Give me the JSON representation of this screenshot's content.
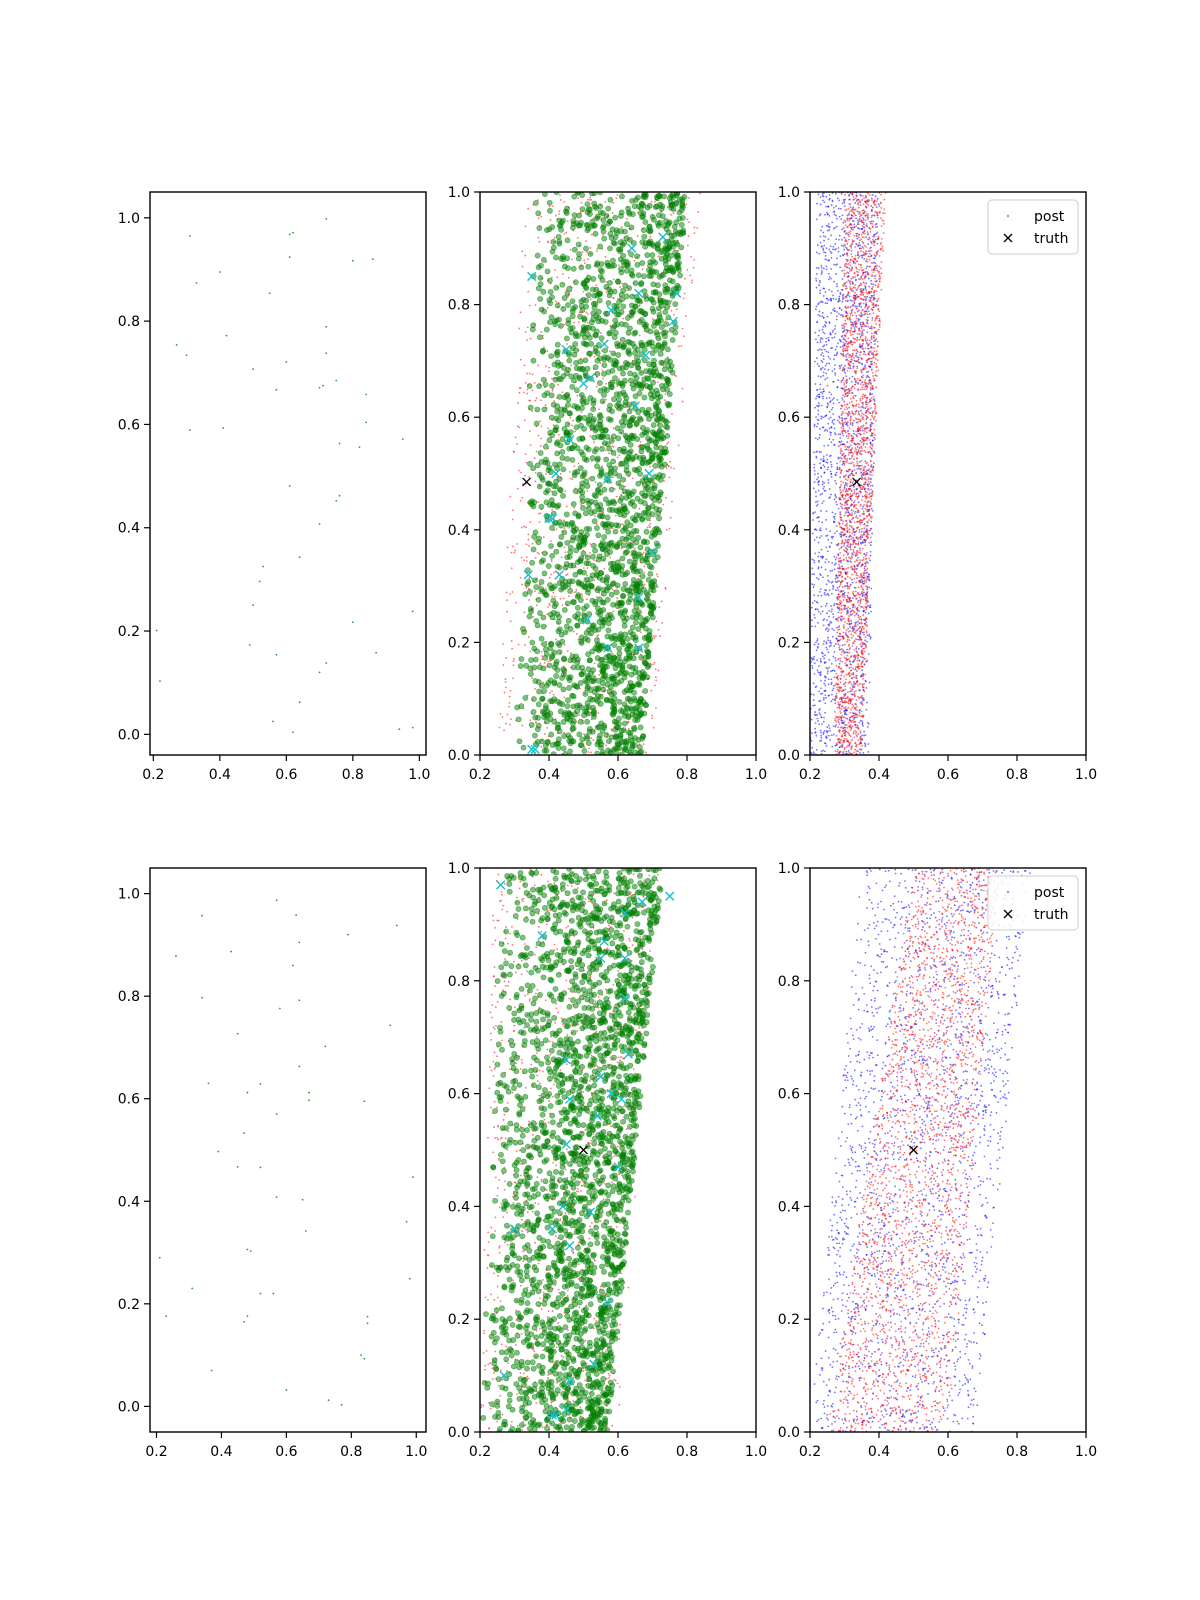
{
  "figure": {
    "background": "#ffffff"
  },
  "colors": {
    "green_dot": "#2ca02c",
    "scatter_green": "#008000",
    "cyan_x": "#17becf",
    "red_dot": "#ff0000",
    "blue_dot": "#0000ff",
    "truth": "#000000",
    "legend_post": "#6fa8dc"
  },
  "chart_data": [
    {
      "type": "scatter",
      "panel": "top-left",
      "xlim": [
        0.19,
        1.02
      ],
      "ylim": [
        -0.04,
        1.05
      ],
      "xticks": [
        "0.2",
        "0.4",
        "0.6",
        "0.8",
        "1.0"
      ],
      "yticks": [
        "0.0",
        "0.2",
        "0.4",
        "0.6",
        "0.8",
        "1.0"
      ],
      "grid": false,
      "series": [
        {
          "marker": "dot",
          "color": "#2ca02c",
          "points": [
            [
              0.31,
              0.965
            ],
            [
              0.61,
              0.968
            ],
            [
              0.62,
              0.971
            ],
            [
              0.72,
              0.998
            ],
            [
              0.33,
              0.874
            ],
            [
              0.4,
              0.895
            ],
            [
              0.61,
              0.924
            ],
            [
              0.8,
              0.917
            ],
            [
              0.86,
              0.92
            ],
            [
              0.55,
              0.854
            ],
            [
              0.42,
              0.772
            ],
            [
              0.72,
              0.789
            ],
            [
              0.27,
              0.754
            ],
            [
              0.3,
              0.734
            ],
            [
              0.72,
              0.738
            ],
            [
              0.6,
              0.721
            ],
            [
              0.5,
              0.707
            ],
            [
              0.75,
              0.685
            ],
            [
              0.7,
              0.671
            ],
            [
              0.71,
              0.675
            ],
            [
              0.57,
              0.667
            ],
            [
              0.84,
              0.658
            ],
            [
              0.84,
              0.604
            ],
            [
              0.31,
              0.589
            ],
            [
              0.41,
              0.593
            ],
            [
              0.95,
              0.571
            ],
            [
              0.76,
              0.563
            ],
            [
              0.82,
              0.556
            ],
            [
              0.61,
              0.481
            ],
            [
              0.76,
              0.462
            ],
            [
              0.75,
              0.452
            ],
            [
              0.7,
              0.407
            ],
            [
              0.64,
              0.343
            ],
            [
              0.53,
              0.325
            ],
            [
              0.52,
              0.296
            ],
            [
              0.5,
              0.25
            ],
            [
              0.21,
              0.201
            ],
            [
              0.8,
              0.217
            ],
            [
              0.98,
              0.238
            ],
            [
              0.49,
              0.173
            ],
            [
              0.57,
              0.154
            ],
            [
              0.87,
              0.158
            ],
            [
              0.72,
              0.138
            ],
            [
              0.7,
              0.12
            ],
            [
              0.22,
              0.103
            ],
            [
              0.64,
              0.062
            ],
            [
              0.56,
              0.025
            ],
            [
              0.62,
              0.004
            ],
            [
              0.94,
              0.01
            ],
            [
              0.98,
              0.013
            ]
          ]
        }
      ]
    },
    {
      "type": "scatter",
      "panel": "top-middle",
      "xlim": [
        0.2,
        1.0
      ],
      "ylim": [
        0.0,
        1.0
      ],
      "xticks": [
        "0.2",
        "0.4",
        "0.6",
        "0.8",
        "1.0"
      ],
      "yticks": [
        "0.0",
        "0.2",
        "0.4",
        "0.6",
        "0.8",
        "1.0"
      ],
      "grid": false,
      "series": [
        {
          "marker": "dot",
          "color": "#ff0000",
          "count": 1100,
          "x_left": [
            0.25,
            0.33
          ],
          "x_right": [
            0.7,
            0.84
          ]
        },
        {
          "marker": "circle",
          "color": "#008000",
          "count": 2200,
          "x_left": [
            0.3,
            0.36
          ],
          "x_right": [
            0.67,
            0.8
          ]
        },
        {
          "marker": "x",
          "color": "#17becf",
          "points": [
            [
              0.35,
              0.85
            ],
            [
              0.45,
              0.72
            ],
            [
              0.58,
              0.79
            ],
            [
              0.64,
              0.9
            ],
            [
              0.66,
              0.82
            ],
            [
              0.77,
              0.82
            ],
            [
              0.73,
              0.92
            ],
            [
              0.76,
              0.77
            ],
            [
              0.56,
              0.73
            ],
            [
              0.68,
              0.71
            ],
            [
              0.46,
              0.56
            ],
            [
              0.5,
              0.66
            ],
            [
              0.52,
              0.67
            ],
            [
              0.65,
              0.62
            ],
            [
              0.41,
              0.42
            ],
            [
              0.4,
              0.42
            ],
            [
              0.42,
              0.5
            ],
            [
              0.57,
              0.49
            ],
            [
              0.69,
              0.5
            ],
            [
              0.34,
              0.32
            ],
            [
              0.43,
              0.32
            ],
            [
              0.7,
              0.36
            ],
            [
              0.66,
              0.28
            ],
            [
              0.51,
              0.24
            ],
            [
              0.57,
              0.19
            ],
            [
              0.66,
              0.19
            ],
            [
              0.35,
              0.01
            ],
            [
              0.36,
              0.01
            ]
          ]
        },
        {
          "marker": "x",
          "color": "#000000",
          "points": [
            [
              0.335,
              0.485
            ]
          ]
        }
      ]
    },
    {
      "type": "scatter",
      "panel": "top-right",
      "xlim": [
        0.2,
        1.0
      ],
      "ylim": [
        0.0,
        1.0
      ],
      "xticks": [
        "0.2",
        "0.4",
        "0.6",
        "0.8",
        "1.0"
      ],
      "yticks": [
        "0.0",
        "0.2",
        "0.4",
        "0.6",
        "0.8",
        "1.0"
      ],
      "grid": false,
      "legend": {
        "position": "top-right",
        "entries": [
          {
            "label": "post",
            "marker": "dot",
            "color": "#6fa8dc"
          },
          {
            "label": "truth",
            "marker": "x",
            "color": "#000000"
          }
        ]
      },
      "series": [
        {
          "marker": "dot",
          "color": "#0000ff",
          "count": 2000,
          "x_left": [
            0.2,
            0.22
          ],
          "x_right": [
            0.37,
            0.4
          ]
        },
        {
          "marker": "dot",
          "color": "#ff0000",
          "count": 2200,
          "x_left": [
            0.27,
            0.3
          ],
          "x_right": [
            0.35,
            0.42
          ]
        },
        {
          "marker": "x",
          "color": "#000000",
          "points": [
            [
              0.335,
              0.485
            ]
          ]
        }
      ]
    },
    {
      "type": "scatter",
      "panel": "bottom-left",
      "xlim": [
        0.18,
        1.03
      ],
      "ylim": [
        -0.05,
        1.05
      ],
      "xticks": [
        "0.2",
        "0.4",
        "0.6",
        "0.8",
        "1.0"
      ],
      "yticks": [
        "0.0",
        "0.2",
        "0.4",
        "0.6",
        "0.8",
        "1.0"
      ],
      "grid": false,
      "series": [
        {
          "marker": "dot",
          "color": "#2ca02c",
          "points": [
            [
              0.57,
              0.987
            ],
            [
              0.34,
              0.957
            ],
            [
              0.63,
              0.958
            ],
            [
              0.79,
              0.92
            ],
            [
              0.94,
              0.938
            ],
            [
              0.64,
              0.905
            ],
            [
              0.43,
              0.887
            ],
            [
              0.26,
              0.878
            ],
            [
              0.62,
              0.86
            ],
            [
              0.34,
              0.797
            ],
            [
              0.64,
              0.792
            ],
            [
              0.58,
              0.776
            ],
            [
              0.92,
              0.743
            ],
            [
              0.45,
              0.727
            ],
            [
              0.72,
              0.702
            ],
            [
              0.64,
              0.663
            ],
            [
              0.36,
              0.63
            ],
            [
              0.52,
              0.629
            ],
            [
              0.67,
              0.612
            ],
            [
              0.67,
              0.597
            ],
            [
              0.48,
              0.612
            ],
            [
              0.84,
              0.595
            ],
            [
              0.57,
              0.57
            ],
            [
              0.47,
              0.533
            ],
            [
              0.39,
              0.497
            ],
            [
              0.99,
              0.447
            ],
            [
              0.45,
              0.467
            ],
            [
              0.52,
              0.466
            ],
            [
              0.57,
              0.408
            ],
            [
              0.65,
              0.403
            ],
            [
              0.66,
              0.342
            ],
            [
              0.97,
              0.36
            ],
            [
              0.48,
              0.306
            ],
            [
              0.49,
              0.303
            ],
            [
              0.21,
              0.29
            ],
            [
              0.98,
              0.249
            ],
            [
              0.31,
              0.23
            ],
            [
              0.52,
              0.22
            ],
            [
              0.56,
              0.22
            ],
            [
              0.23,
              0.176
            ],
            [
              0.48,
              0.176
            ],
            [
              0.47,
              0.165
            ],
            [
              0.85,
              0.175
            ],
            [
              0.85,
              0.162
            ],
            [
              0.83,
              0.1
            ],
            [
              0.84,
              0.093
            ],
            [
              0.37,
              0.07
            ],
            [
              0.6,
              0.032
            ],
            [
              0.73,
              0.012
            ],
            [
              0.77,
              0.003
            ]
          ]
        }
      ]
    },
    {
      "type": "scatter",
      "panel": "bottom-middle",
      "xlim": [
        0.2,
        1.0
      ],
      "ylim": [
        0.0,
        1.0
      ],
      "xticks": [
        "0.2",
        "0.4",
        "0.6",
        "0.8",
        "1.0"
      ],
      "yticks": [
        "0.0",
        "0.2",
        "0.4",
        "0.6",
        "0.8",
        "1.0"
      ],
      "grid": false,
      "series": [
        {
          "marker": "dot",
          "color": "#ff0000",
          "count": 1100,
          "x_left": [
            0.2,
            0.24
          ],
          "x_right": [
            0.6,
            0.72
          ]
        },
        {
          "marker": "circle",
          "color": "#008000",
          "count": 2400,
          "x_left": [
            0.2,
            0.26
          ],
          "x_right": [
            0.57,
            0.73
          ]
        },
        {
          "marker": "x",
          "color": "#17becf",
          "points": [
            [
              0.26,
              0.97
            ],
            [
              0.75,
              0.95
            ],
            [
              0.67,
              0.94
            ],
            [
              0.62,
              0.92
            ],
            [
              0.38,
              0.88
            ],
            [
              0.56,
              0.87
            ],
            [
              0.62,
              0.84
            ],
            [
              0.55,
              0.84
            ],
            [
              0.62,
              0.77
            ],
            [
              0.63,
              0.67
            ],
            [
              0.45,
              0.66
            ],
            [
              0.55,
              0.63
            ],
            [
              0.58,
              0.6
            ],
            [
              0.46,
              0.59
            ],
            [
              0.61,
              0.59
            ],
            [
              0.54,
              0.56
            ],
            [
              0.45,
              0.51
            ],
            [
              0.6,
              0.47
            ],
            [
              0.44,
              0.4
            ],
            [
              0.52,
              0.39
            ],
            [
              0.3,
              0.36
            ],
            [
              0.41,
              0.36
            ],
            [
              0.46,
              0.33
            ],
            [
              0.57,
              0.23
            ],
            [
              0.53,
              0.12
            ],
            [
              0.27,
              0.1
            ],
            [
              0.46,
              0.09
            ],
            [
              0.45,
              0.04
            ],
            [
              0.41,
              0.03
            ],
            [
              0.42,
              0.03
            ]
          ]
        },
        {
          "marker": "x",
          "color": "#000000",
          "points": [
            [
              0.5,
              0.5
            ]
          ]
        }
      ]
    },
    {
      "type": "scatter",
      "panel": "bottom-right",
      "xlim": [
        0.2,
        1.0
      ],
      "ylim": [
        0.0,
        1.0
      ],
      "xticks": [
        "0.2",
        "0.4",
        "0.6",
        "0.8",
        "1.0"
      ],
      "yticks": [
        "0.0",
        "0.2",
        "0.4",
        "0.6",
        "0.8",
        "1.0"
      ],
      "grid": false,
      "legend": {
        "position": "top-right",
        "entries": [
          {
            "label": "post",
            "marker": "dot",
            "color": "#6fa8dc"
          },
          {
            "label": "truth",
            "marker": "x",
            "color": "#000000"
          }
        ]
      },
      "series": [
        {
          "marker": "dot",
          "color": "#0000ff",
          "count": 2200,
          "x_left": [
            0.2,
            0.35
          ],
          "x_right": [
            0.68,
            0.84
          ]
        },
        {
          "marker": "dot",
          "color": "#ff0000",
          "count": 2400,
          "x_left": [
            0.25,
            0.5
          ],
          "x_right": [
            0.6,
            0.75
          ]
        },
        {
          "marker": "x",
          "color": "#000000",
          "points": [
            [
              0.5,
              0.5
            ]
          ]
        }
      ]
    }
  ]
}
